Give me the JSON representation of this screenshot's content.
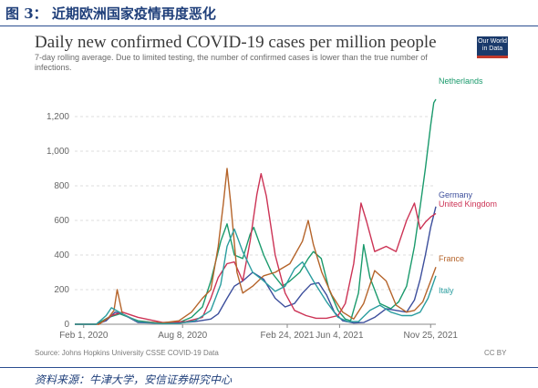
{
  "figure_label": "图 3： 近期欧洲国家疫情再度恶化",
  "source_note": "资料来源：牛津大学，安信证券研究中心",
  "logo": {
    "line1": "Our World",
    "line2": "in Data"
  },
  "footer": {
    "source": "Source: Johns Hopkins University CSSE COVID-19 Data",
    "license": "CC BY"
  },
  "colors": {
    "Netherlands": "#1a9a6c",
    "Germany": "#3c4e9c",
    "United Kingdom": "#cc3355",
    "France": "#b5642a",
    "Italy": "#2a9d9f"
  },
  "chart_data": {
    "type": "line",
    "title": "Daily new confirmed COVID-19 cases per million people",
    "subtitle": "7-day rolling average. Due to limited testing, the number of confirmed cases is lower than the true number of infections.",
    "x_ticks": [
      "Feb 1, 2020",
      "Aug 8, 2020",
      "Feb 24, 2021",
      "Jun 4, 2021",
      "Nov 25, 2021"
    ],
    "y_ticks": [
      "0",
      "200",
      "400",
      "600",
      "800",
      "1,000",
      "1,200"
    ],
    "ylim": [
      0,
      1300
    ],
    "xlim": [
      "2020-01-15",
      "2021-12-05"
    ],
    "grid": true,
    "legend": "right-end labels",
    "series": [
      {
        "name": "Netherlands",
        "x": [
          "2020-01-15",
          "2020-02-25",
          "2020-03-20",
          "2020-04-10",
          "2020-05-15",
          "2020-07-01",
          "2020-08-01",
          "2020-08-25",
          "2020-09-15",
          "2020-10-01",
          "2020-10-20",
          "2020-11-01",
          "2020-11-15",
          "2020-12-01",
          "2020-12-15",
          "2020-12-22",
          "2021-01-10",
          "2021-01-25",
          "2021-02-15",
          "2021-03-01",
          "2021-03-20",
          "2021-04-05",
          "2021-04-15",
          "2021-04-30",
          "2021-05-15",
          "2021-06-01",
          "2021-06-15",
          "2021-06-25",
          "2021-07-10",
          "2021-07-20",
          "2021-08-01",
          "2021-08-20",
          "2021-09-10",
          "2021-09-25",
          "2021-10-10",
          "2021-10-25",
          "2021-11-05",
          "2021-11-15",
          "2021-11-25",
          "2021-12-01",
          "2021-12-05"
        ],
        "y": [
          0,
          0,
          40,
          60,
          20,
          5,
          10,
          40,
          100,
          250,
          480,
          580,
          400,
          380,
          520,
          560,
          400,
          300,
          220,
          250,
          300,
          380,
          420,
          380,
          200,
          80,
          30,
          20,
          180,
          460,
          270,
          120,
          90,
          130,
          220,
          450,
          680,
          900,
          1150,
          1280,
          1300
        ]
      },
      {
        "name": "Germany",
        "x": [
          "2020-01-15",
          "2020-02-25",
          "2020-03-15",
          "2020-04-01",
          "2020-04-15",
          "2020-05-15",
          "2020-07-01",
          "2020-08-01",
          "2020-09-01",
          "2020-10-01",
          "2020-10-15",
          "2020-11-01",
          "2020-11-15",
          "2020-12-01",
          "2020-12-20",
          "2021-01-10",
          "2021-02-01",
          "2021-02-20",
          "2021-03-10",
          "2021-03-25",
          "2021-04-10",
          "2021-04-25",
          "2021-05-10",
          "2021-05-25",
          "2021-06-10",
          "2021-07-01",
          "2021-07-20",
          "2021-08-10",
          "2021-09-01",
          "2021-09-20",
          "2021-10-10",
          "2021-10-25",
          "2021-11-05",
          "2021-11-15",
          "2021-11-25",
          "2021-12-05"
        ],
        "y": [
          0,
          0,
          20,
          70,
          60,
          10,
          5,
          8,
          15,
          30,
          60,
          150,
          220,
          250,
          300,
          260,
          150,
          100,
          120,
          180,
          230,
          240,
          170,
          70,
          20,
          8,
          10,
          40,
          90,
          80,
          70,
          140,
          260,
          400,
          560,
          680
        ]
      },
      {
        "name": "United Kingdom",
        "x": [
          "2020-01-15",
          "2020-03-01",
          "2020-03-25",
          "2020-04-15",
          "2020-05-15",
          "2020-07-01",
          "2020-08-15",
          "2020-09-15",
          "2020-10-01",
          "2020-10-15",
          "2020-11-01",
          "2020-11-15",
          "2020-12-01",
          "2020-12-15",
          "2020-12-28",
          "2021-01-05",
          "2021-01-15",
          "2021-02-01",
          "2021-02-20",
          "2021-03-10",
          "2021-04-01",
          "2021-04-20",
          "2021-05-10",
          "2021-06-01",
          "2021-06-15",
          "2021-07-01",
          "2021-07-15",
          "2021-07-25",
          "2021-08-10",
          "2021-09-01",
          "2021-09-20",
          "2021-10-10",
          "2021-10-25",
          "2021-11-05",
          "2021-11-15",
          "2021-11-25",
          "2021-12-05"
        ],
        "y": [
          0,
          0,
          50,
          70,
          40,
          10,
          15,
          40,
          150,
          270,
          350,
          360,
          250,
          480,
          750,
          870,
          740,
          400,
          180,
          80,
          50,
          35,
          35,
          50,
          120,
          350,
          700,
          600,
          420,
          450,
          420,
          600,
          700,
          550,
          590,
          620,
          640
        ]
      },
      {
        "name": "France",
        "x": [
          "2020-01-15",
          "2020-03-01",
          "2020-03-20",
          "2020-03-30",
          "2020-04-05",
          "2020-04-15",
          "2020-05-15",
          "2020-07-01",
          "2020-08-01",
          "2020-08-25",
          "2020-09-15",
          "2020-10-01",
          "2020-10-15",
          "2020-10-25",
          "2020-11-01",
          "2020-11-08",
          "2020-11-20",
          "2020-12-01",
          "2020-12-20",
          "2021-01-10",
          "2021-02-01",
          "2021-03-01",
          "2021-03-25",
          "2021-04-05",
          "2021-04-15",
          "2021-05-01",
          "2021-05-20",
          "2021-06-10",
          "2021-07-01",
          "2021-07-20",
          "2021-08-10",
          "2021-09-01",
          "2021-09-20",
          "2021-10-10",
          "2021-10-25",
          "2021-11-10",
          "2021-11-25",
          "2021-12-05"
        ],
        "y": [
          0,
          0,
          40,
          80,
          200,
          60,
          15,
          8,
          20,
          70,
          150,
          200,
          450,
          700,
          900,
          700,
          300,
          180,
          220,
          280,
          300,
          350,
          480,
          600,
          460,
          300,
          170,
          70,
          30,
          120,
          310,
          250,
          110,
          70,
          80,
          130,
          250,
          330
        ]
      },
      {
        "name": "Italy",
        "x": [
          "2020-01-15",
          "2020-02-25",
          "2020-03-15",
          "2020-03-25",
          "2020-04-15",
          "2020-05-15",
          "2020-07-01",
          "2020-08-01",
          "2020-09-01",
          "2020-10-01",
          "2020-10-20",
          "2020-11-01",
          "2020-11-15",
          "2020-12-01",
          "2020-12-20",
          "2021-01-10",
          "2021-02-01",
          "2021-02-20",
          "2021-03-10",
          "2021-03-25",
          "2021-04-15",
          "2021-05-10",
          "2021-06-01",
          "2021-06-20",
          "2021-07-10",
          "2021-08-01",
          "2021-08-20",
          "2021-09-10",
          "2021-10-01",
          "2021-10-20",
          "2021-11-05",
          "2021-11-20",
          "2021-12-05"
        ],
        "y": [
          0,
          0,
          50,
          95,
          60,
          15,
          3,
          5,
          20,
          80,
          230,
          450,
          550,
          420,
          300,
          250,
          190,
          220,
          320,
          360,
          250,
          130,
          40,
          15,
          15,
          80,
          110,
          70,
          50,
          50,
          70,
          150,
          280
        ]
      }
    ]
  }
}
